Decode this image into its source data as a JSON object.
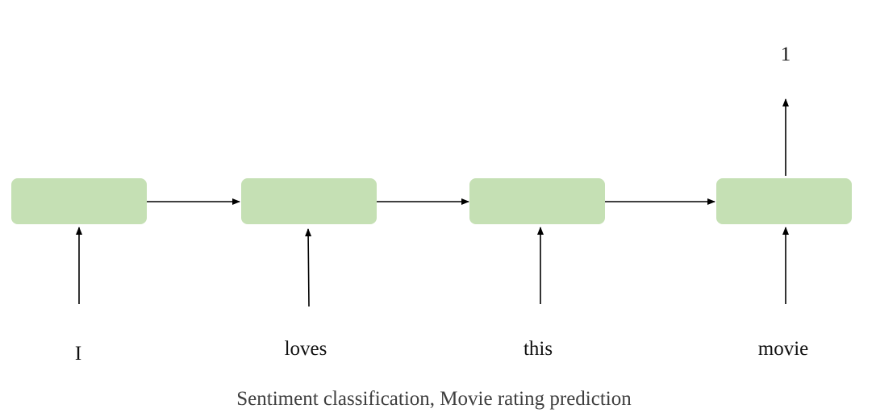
{
  "inputs": [
    "I",
    "loves",
    "this",
    "movie"
  ],
  "output": "1",
  "caption": "Sentiment classification, Movie rating prediction",
  "colors": {
    "cell_fill": "#c5e0b4",
    "arrow": "#000000",
    "text": "#111111",
    "caption": "#3f3f3f"
  }
}
